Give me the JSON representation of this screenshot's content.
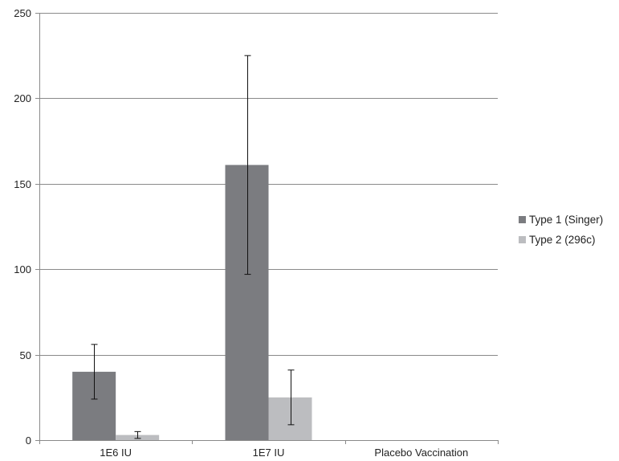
{
  "chart_data": {
    "type": "bar",
    "title": "",
    "xlabel": "",
    "ylabel": "",
    "categories": [
      "1E6 IU",
      "1E7 IU",
      "Placebo Vaccination"
    ],
    "ylim": [
      0,
      250
    ],
    "yticks": [
      0,
      50,
      100,
      150,
      200,
      250
    ],
    "grid": true,
    "legend_position": "right",
    "series": [
      {
        "name": "Type 1 (Singer)",
        "color": "#7b7c80",
        "values": [
          40,
          161,
          0
        ],
        "error_low": [
          24,
          97,
          null
        ],
        "error_high": [
          56,
          225,
          null
        ]
      },
      {
        "name": "Type 2 (296c)",
        "color": "#bcbdc0",
        "values": [
          3,
          25,
          0
        ],
        "error_low": [
          1,
          9,
          null
        ],
        "error_high": [
          5,
          41,
          null
        ]
      }
    ]
  }
}
